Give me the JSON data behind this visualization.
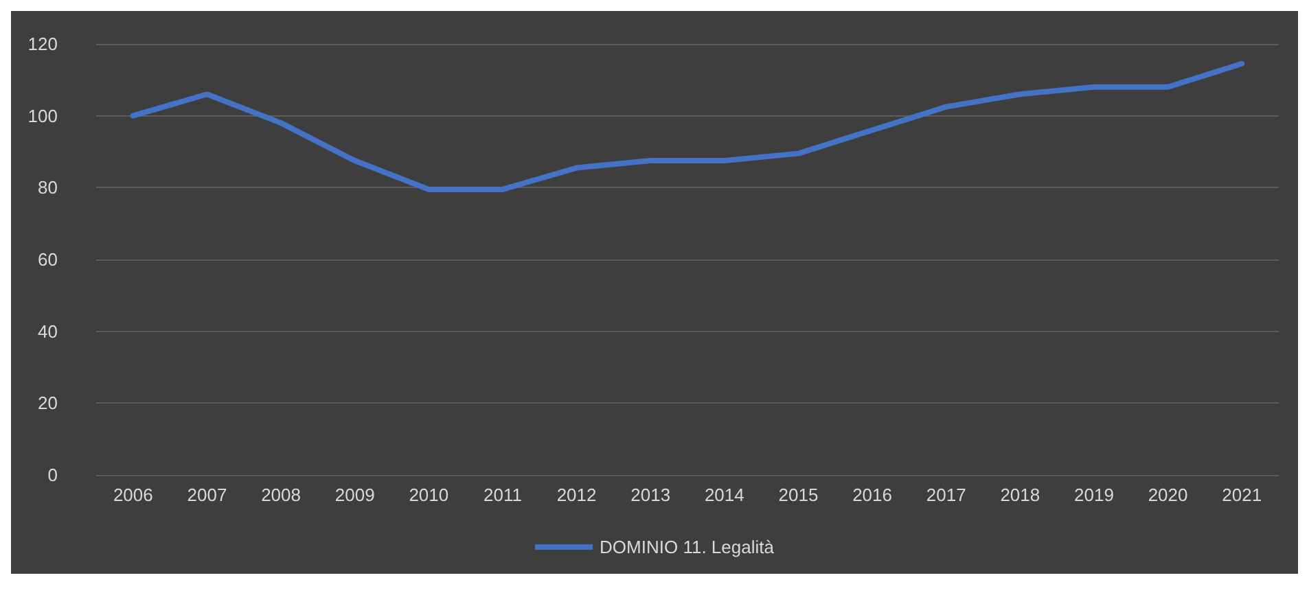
{
  "chart_data": {
    "type": "line",
    "categories": [
      "2006",
      "2007",
      "2008",
      "2009",
      "2010",
      "2011",
      "2012",
      "2013",
      "2014",
      "2015",
      "2016",
      "2017",
      "2018",
      "2019",
      "2020",
      "2021"
    ],
    "series": [
      {
        "name": "DOMINIO 11. Legalità",
        "color": "#4472c4",
        "values": [
          100,
          106,
          98,
          87.5,
          79.5,
          79.5,
          85.5,
          87.5,
          87.5,
          89.5,
          96,
          102.5,
          106,
          108,
          108,
          114.5
        ]
      }
    ],
    "ylim": [
      0,
      120
    ],
    "yticks": [
      0,
      20,
      40,
      60,
      80,
      100,
      120
    ],
    "grid": "y",
    "legend": "bottom",
    "marker": "none",
    "line_style": "solid"
  }
}
